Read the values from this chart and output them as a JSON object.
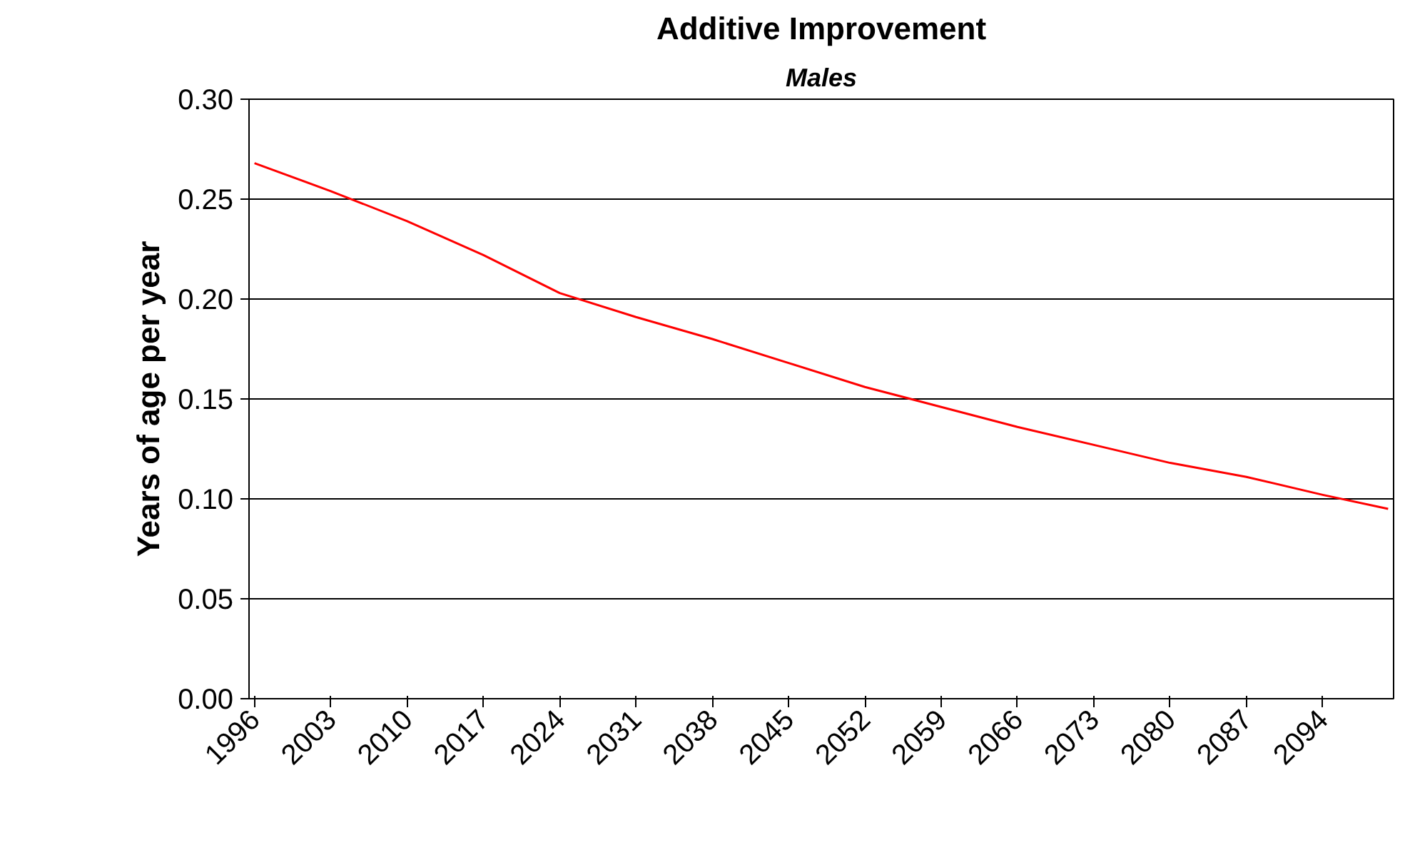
{
  "chart_data": {
    "type": "line",
    "title": "Additive Improvement",
    "subtitle": "Males",
    "ylabel": "Years of age per year",
    "x": [
      1996,
      2003,
      2010,
      2017,
      2024,
      2031,
      2038,
      2045,
      2052,
      2059,
      2066,
      2073,
      2080,
      2087,
      2094,
      2100
    ],
    "series": [
      {
        "color": "#ff0000",
        "values": [
          0.268,
          0.254,
          0.239,
          0.222,
          0.203,
          0.191,
          0.18,
          0.168,
          0.156,
          0.146,
          0.136,
          0.127,
          0.118,
          0.111,
          0.102,
          0.095
        ]
      }
    ],
    "xlim": [
      1995.5,
      2100.5
    ],
    "xticks": [
      1996,
      2003,
      2010,
      2017,
      2024,
      2031,
      2038,
      2045,
      2052,
      2059,
      2066,
      2073,
      2080,
      2087,
      2094
    ],
    "ylim": [
      0,
      0.3
    ],
    "yticks": [
      {
        "value": 0,
        "label": "0.00"
      },
      {
        "value": 0.05,
        "label": "0.05"
      },
      {
        "value": 0.1,
        "label": "0.10"
      },
      {
        "value": 0.15,
        "label": "0.15"
      },
      {
        "value": 0.2,
        "label": "0.20"
      },
      {
        "value": 0.25,
        "label": "0.25"
      },
      {
        "value": 0.3,
        "label": "0.30"
      }
    ],
    "grid": "y",
    "marker": "none",
    "line_style": "solid"
  }
}
